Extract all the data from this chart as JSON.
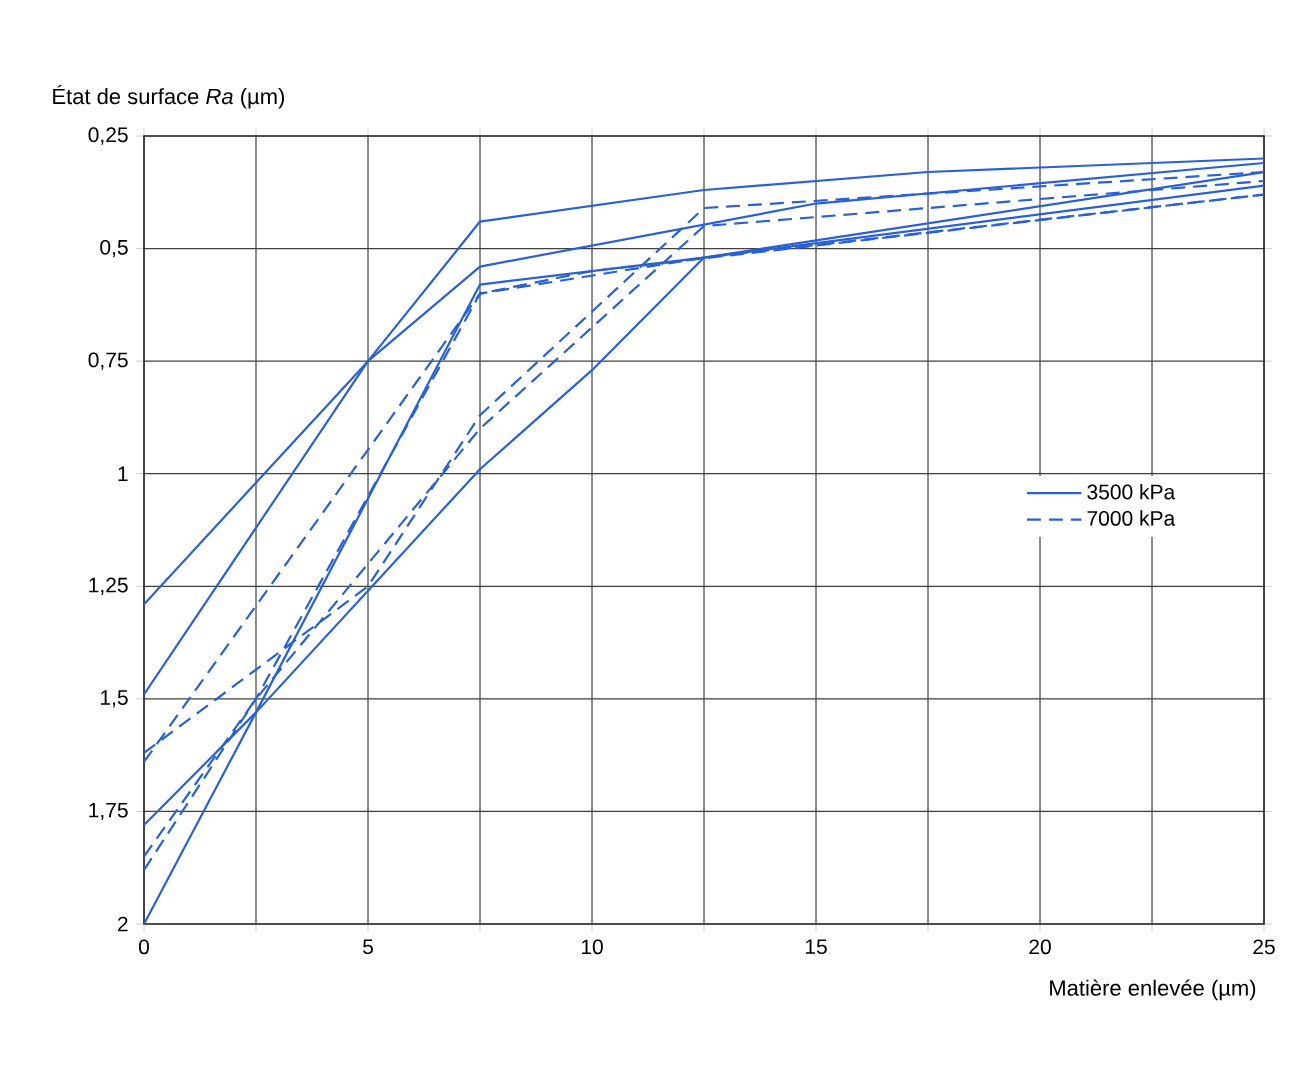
{
  "chart_data": {
    "type": "line",
    "xlabel": "Matière enlevée (µm)",
    "ylabel": "État de surface *Ra* (µm)",
    "xlim": [
      0,
      25
    ],
    "ylim": [
      2,
      0.25
    ],
    "xticks": [
      0,
      {
        "value": 2.5,
        "label": null
      },
      5,
      {
        "value": 7.5,
        "label": null
      },
      10,
      {
        "value": 12.5,
        "label": null
      },
      15,
      {
        "value": 17.5,
        "label": null
      },
      20,
      {
        "value": 22.5,
        "label": null
      },
      25
    ],
    "yticks": [
      {
        "value": 0.25,
        "label": "0,25"
      },
      {
        "value": 0.5,
        "label": "0,5"
      },
      {
        "value": 0.75,
        "label": "0,75"
      },
      1,
      {
        "value": 1.25,
        "label": "1,25"
      },
      {
        "value": 1.5,
        "label": "1,5"
      },
      {
        "value": 1.75,
        "label": "1,75"
      },
      2
    ],
    "grid": true,
    "legend": "right",
    "marker": "none",
    "series": [
      {
        "name": "3500 kPa",
        "color": "#2860d8",
        "line_style": "solid",
        "x": [
          0,
          5,
          7.5,
          12.5,
          17.5,
          25
        ],
        "values": [
          1.29,
          0.75,
          0.44,
          0.37,
          0.33,
          0.3
        ]
      },
      {
        "color": "#2860d8",
        "line_style": "solid",
        "x": [
          0,
          5,
          7.5,
          15,
          25
        ],
        "values": [
          1.49,
          0.75,
          0.54,
          0.4,
          0.31
        ]
      },
      {
        "color": "#2860d8",
        "line_style": "solid",
        "x": [
          0,
          2.5,
          7.5,
          12.5,
          25
        ],
        "values": [
          2.0,
          1.53,
          0.58,
          0.52,
          0.36
        ]
      },
      {
        "color": "#2860d8",
        "line_style": "solid",
        "x": [
          0,
          2.5,
          7.5,
          10,
          12.5,
          25
        ],
        "values": [
          1.78,
          1.53,
          0.99,
          0.77,
          0.52,
          0.33
        ]
      },
      {
        "name": "7000 kPa",
        "color": "#2860d8",
        "line_style": "dashed",
        "x": [
          0,
          7.5,
          12.5,
          25
        ],
        "values": [
          1.64,
          0.6,
          0.52,
          0.38
        ]
      },
      {
        "color": "#2860d8",
        "line_style": "dashed",
        "x": [
          0,
          5,
          7.5,
          12.5,
          25
        ],
        "values": [
          1.62,
          1.25,
          0.87,
          0.41,
          0.33
        ]
      },
      {
        "color": "#2860d8",
        "line_style": "dashed",
        "x": [
          0,
          2.5,
          7.5,
          12.5,
          25
        ],
        "values": [
          1.85,
          1.5,
          0.9,
          0.45,
          0.35
        ]
      },
      {
        "color": "#2860d8",
        "line_style": "dashed",
        "x": [
          0,
          2.5,
          7.5,
          10,
          25
        ],
        "values": [
          1.88,
          1.5,
          0.6,
          0.55,
          0.38
        ]
      }
    ]
  }
}
